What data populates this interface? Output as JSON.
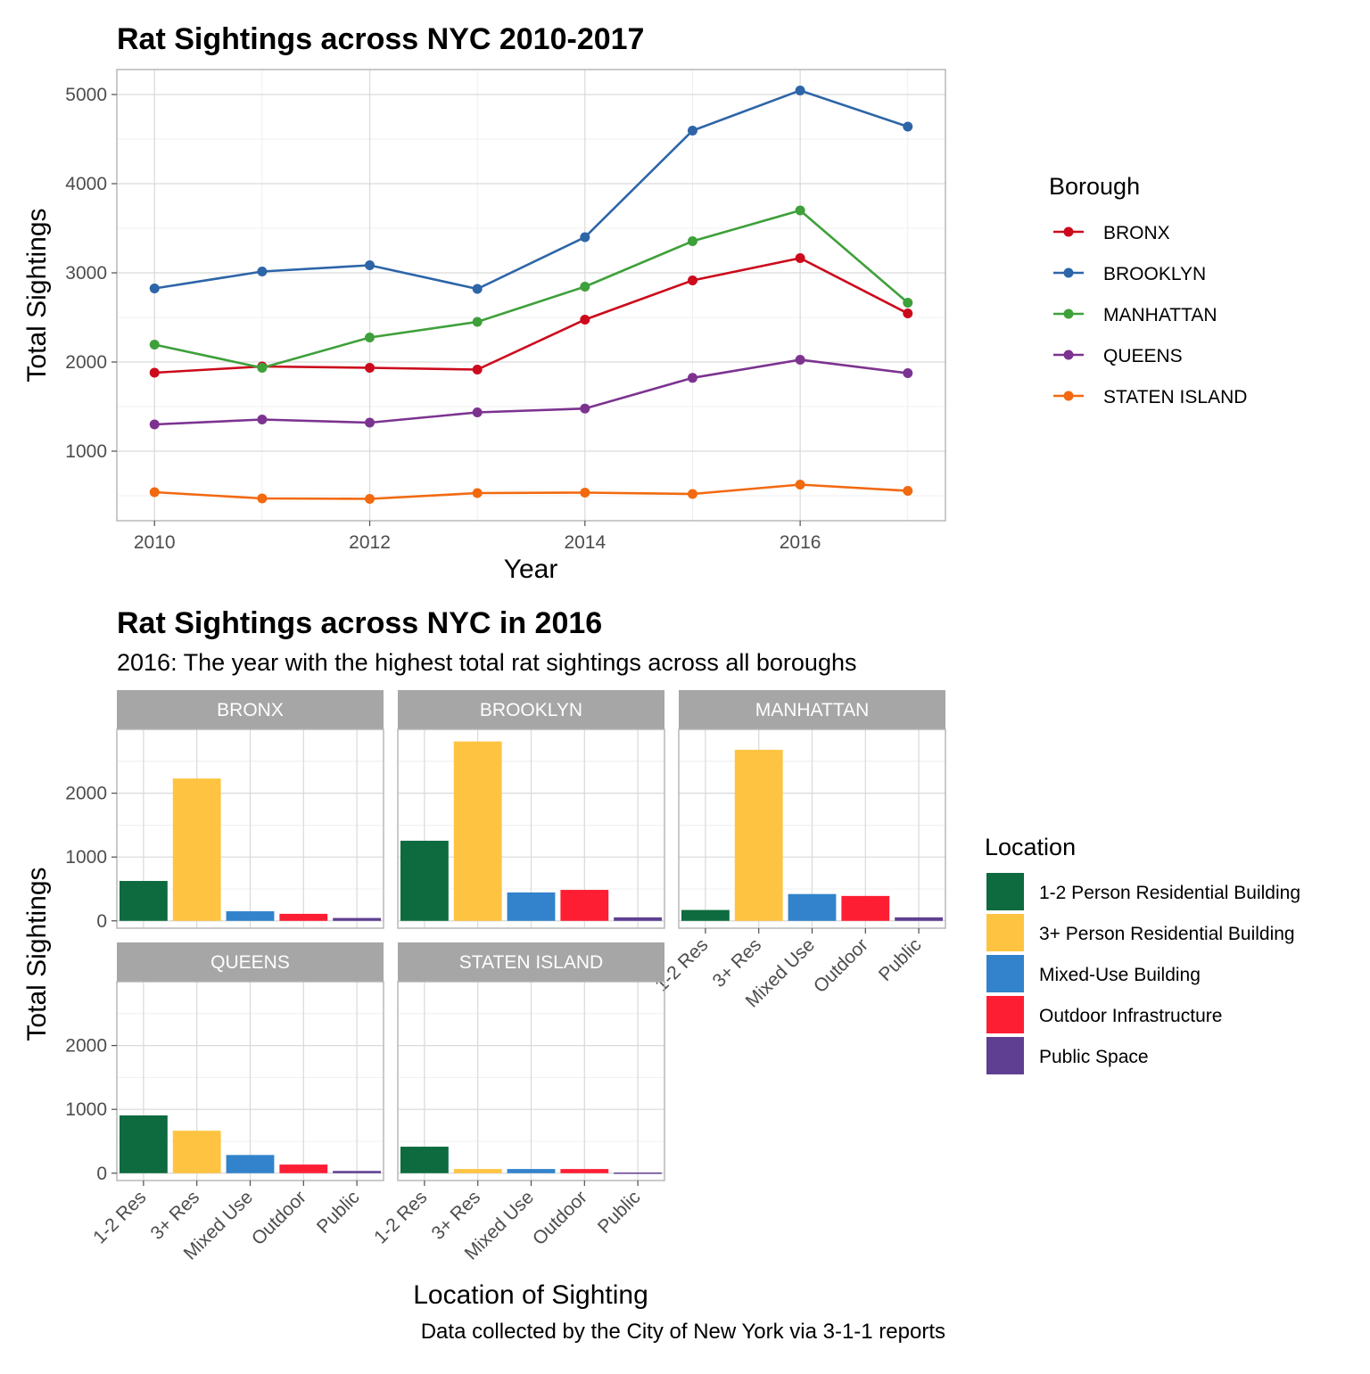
{
  "chart_data": [
    {
      "type": "line",
      "title": "Rat Sightings across NYC 2010-2017",
      "xlabel": "Year",
      "ylabel": "Total Sightings",
      "x": [
        2010,
        2011,
        2012,
        2013,
        2014,
        2015,
        2016,
        2017
      ],
      "xlim": [
        2009.65,
        2017.35
      ],
      "ylim": [
        220,
        5280
      ],
      "x_ticks": [
        "2010",
        "2012",
        "2014",
        "2016"
      ],
      "x_tick_values": [
        2010,
        2012,
        2014,
        2016
      ],
      "y_ticks": [
        "1000",
        "2000",
        "3000",
        "4000",
        "5000"
      ],
      "y_tick_values": [
        1000,
        2000,
        3000,
        4000,
        5000
      ],
      "grid": true,
      "legend_position": "right",
      "legend_title": "Borough",
      "series": [
        {
          "name": "BRONX",
          "color": "#cc0a1c",
          "values": [
            1880,
            1950,
            1935,
            1915,
            2475,
            2915,
            3165,
            2545
          ]
        },
        {
          "name": "BROOKLYN",
          "color": "#2d65a8",
          "values": [
            2825,
            3015,
            3085,
            2820,
            3400,
            4595,
            5045,
            4640
          ]
        },
        {
          "name": "MANHATTAN",
          "color": "#3ea03a",
          "values": [
            2195,
            1935,
            2275,
            2450,
            2845,
            3355,
            3700,
            2665
          ]
        },
        {
          "name": "QUEENS",
          "color": "#7c3390",
          "values": [
            1300,
            1355,
            1320,
            1435,
            1478,
            1822,
            2025,
            1875
          ]
        },
        {
          "name": "STATEN ISLAND",
          "color": "#f2690f",
          "values": [
            540,
            470,
            465,
            530,
            535,
            520,
            625,
            555
          ]
        }
      ]
    },
    {
      "type": "bar",
      "title": "Rat Sightings across NYC in 2016",
      "subtitle": "2016: The year with the highest total rat sightings across all boroughs",
      "xlabel": "Location of Sighting",
      "ylabel": "Total Sightings",
      "caption": "Data collected by the City of New York via 3-1-1 reports",
      "categories": [
        "1-2 Res",
        "3+ Res",
        "Mixed Use",
        "Outdoor",
        "Public"
      ],
      "ylim": [
        -115,
        3000
      ],
      "y_ticks": [
        "0",
        "1000",
        "2000"
      ],
      "y_tick_values": [
        0,
        1000,
        2000
      ],
      "grid": true,
      "legend_position": "right",
      "legend_title": "Location",
      "legend": [
        {
          "label": "1-2 Person Residential Building",
          "color": "#0d6b3f"
        },
        {
          "label": "3+ Person Residential Building",
          "color": "#fec441"
        },
        {
          "label": "Mixed-Use Building",
          "color": "#3283cb"
        },
        {
          "label": "Outdoor Infrastructure",
          "color": "#fe1e34"
        },
        {
          "label": "Public Space",
          "color": "#5f3f91"
        }
      ],
      "facets": [
        {
          "name": "BRONX",
          "values": [
            625,
            2230,
            150,
            110,
            45
          ]
        },
        {
          "name": "BROOKLYN",
          "values": [
            1255,
            2810,
            445,
            485,
            55
          ]
        },
        {
          "name": "MANHATTAN",
          "values": [
            170,
            2680,
            420,
            390,
            55
          ]
        },
        {
          "name": "QUEENS",
          "values": [
            905,
            665,
            285,
            135,
            35
          ]
        },
        {
          "name": "STATEN ISLAND",
          "values": [
            415,
            65,
            65,
            65,
            10
          ]
        }
      ]
    }
  ]
}
